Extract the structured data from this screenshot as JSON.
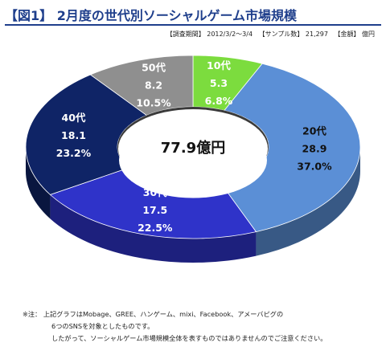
{
  "header": {
    "title": "【図1】 2月度の世代別ソーシャルゲーム市場規模",
    "survey_period": "【調査期間】 2012/3/2～3/4",
    "sample_size": "【サンプル数】 21,297",
    "amount_unit": "【金額】 億円"
  },
  "chart_data": {
    "type": "pie",
    "style": "3d-donut",
    "center_label": "77.9億円",
    "slices": [
      {
        "label": "10代",
        "value": 5.3,
        "value_label": "5.3",
        "percent_label": "6.8%",
        "color": "#7cdc3e",
        "label_color": "#ffffff"
      },
      {
        "label": "20代",
        "value": 28.9,
        "value_label": "28.9",
        "percent_label": "37.0%",
        "color": "#5b8fd6",
        "label_color": "#111111"
      },
      {
        "label": "30代",
        "value": 17.5,
        "value_label": "17.5",
        "percent_label": "22.5%",
        "color": "#2f33c9",
        "label_color": "#ffffff"
      },
      {
        "label": "40代",
        "value": 18.1,
        "value_label": "18.1",
        "percent_label": "23.2%",
        "color": "#0f2466",
        "label_color": "#ffffff"
      },
      {
        "label": "50代",
        "value": 8.2,
        "value_label": "8.2",
        "percent_label": "10.5%",
        "color": "#8f8f8f",
        "label_color": "#ffffff"
      }
    ]
  },
  "notes": [
    "※注： 上記グラフはMobage、GREE、ハンゲーム、mixi、Facebook、アメーバピグの",
    "6つのSNSを対象としたものです。",
    "したがって、ソーシャルゲーム市場規模全体を表すものではありませんのでご注意ください。"
  ]
}
